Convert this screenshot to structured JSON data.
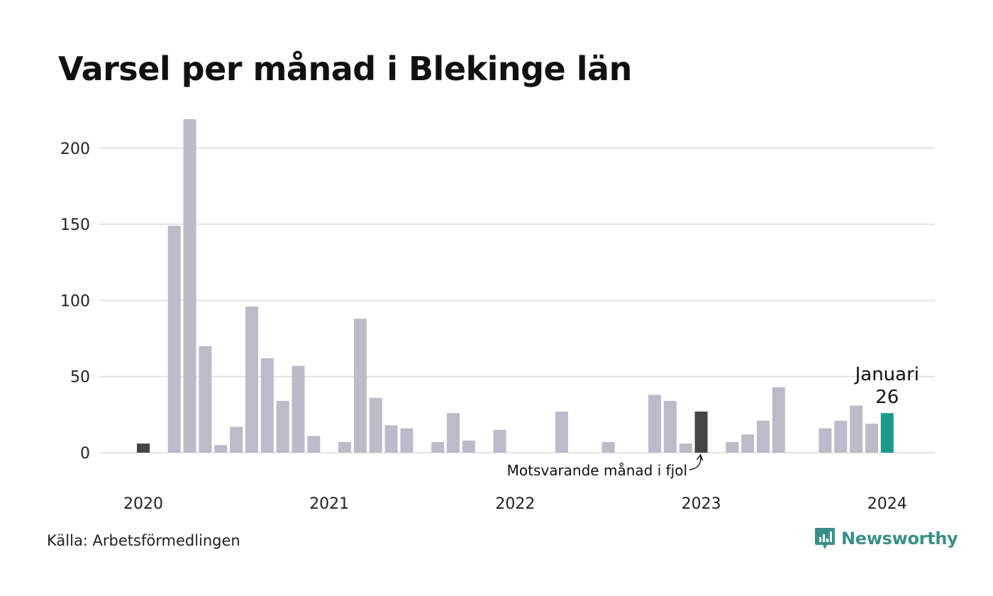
{
  "title": "Varsel per månad i Blekinge län",
  "source": "Källa: Arbetsförmedlingen",
  "brand": {
    "name": "Newsworthy",
    "icon": "newsworthy-logo-icon"
  },
  "colors": {
    "bar": "#bdbbc9",
    "previous_year": "#454545",
    "current": "#1b9a8c",
    "grid": "#e3e3e6",
    "brand": "#3a8f88"
  },
  "chart_data": {
    "type": "bar",
    "title": "Varsel per månad i Blekinge län",
    "xlabel": "",
    "ylabel": "",
    "ylim": [
      0,
      220
    ],
    "yticks": [
      0,
      50,
      100,
      150,
      200
    ],
    "grid": true,
    "categories": [
      "2020-01",
      "2020-02",
      "2020-03",
      "2020-04",
      "2020-05",
      "2020-06",
      "2020-07",
      "2020-08",
      "2020-09",
      "2020-10",
      "2020-11",
      "2020-12",
      "2021-01",
      "2021-02",
      "2021-03",
      "2021-04",
      "2021-05",
      "2021-06",
      "2021-07",
      "2021-08",
      "2021-09",
      "2021-10",
      "2021-11",
      "2021-12",
      "2022-01",
      "2022-02",
      "2022-03",
      "2022-04",
      "2022-05",
      "2022-06",
      "2022-07",
      "2022-08",
      "2022-09",
      "2022-10",
      "2022-11",
      "2022-12",
      "2023-01",
      "2023-02",
      "2023-03",
      "2023-04",
      "2023-05",
      "2023-06",
      "2023-07",
      "2023-08",
      "2023-09",
      "2023-10",
      "2023-11",
      "2023-12",
      "2024-01"
    ],
    "values": [
      6,
      0,
      149,
      219,
      70,
      5,
      17,
      96,
      62,
      34,
      57,
      11,
      0,
      7,
      88,
      36,
      18,
      16,
      0,
      7,
      26,
      8,
      0,
      15,
      0,
      0,
      0,
      27,
      0,
      0,
      7,
      0,
      0,
      38,
      34,
      6,
      27,
      0,
      7,
      12,
      21,
      43,
      0,
      0,
      16,
      21,
      31,
      19,
      26
    ],
    "x_tick_labels": [
      {
        "category": "2020-01",
        "label": "2020"
      },
      {
        "category": "2021-01",
        "label": "2021"
      },
      {
        "category": "2022-01",
        "label": "2022"
      },
      {
        "category": "2023-01",
        "label": "2023"
      },
      {
        "category": "2024-01",
        "label": "2024"
      }
    ],
    "highlights": [
      {
        "category": "2020-01",
        "role": "previous_year"
      },
      {
        "category": "2023-01",
        "role": "previous_year"
      },
      {
        "category": "2024-01",
        "role": "current"
      }
    ],
    "annotations": [
      {
        "category": "2024-01",
        "label": "Januari",
        "value_label": "26"
      },
      {
        "category": "2023-01",
        "label": "Motsvarande månad i fjol"
      }
    ]
  }
}
